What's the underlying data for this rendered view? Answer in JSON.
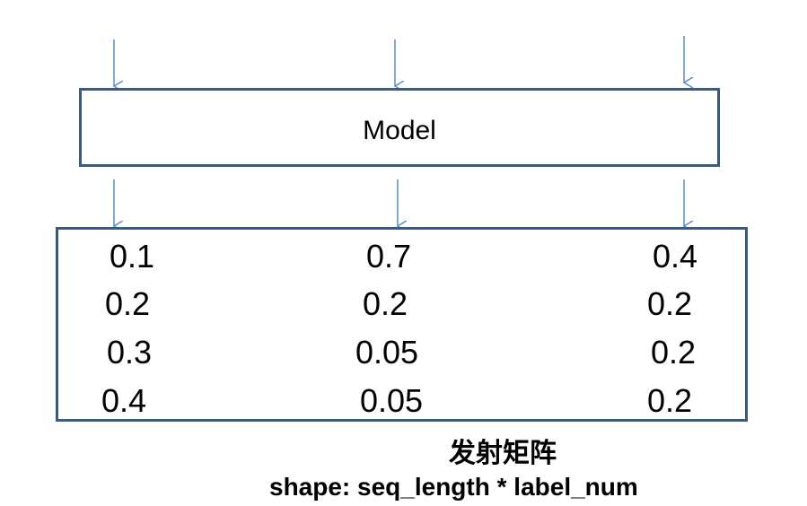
{
  "model": {
    "label": "Model"
  },
  "emission_matrix": {
    "rows": [
      [
        "0.1",
        "0.7",
        "0.4"
      ],
      [
        "0.2",
        "0.2",
        "0.2"
      ],
      [
        "0.3",
        "0.05",
        "0.2"
      ],
      [
        "0.4",
        "0.05",
        "0.2"
      ]
    ]
  },
  "caption": {
    "title": "发射矩阵",
    "shape": "shape: seq_length * label_num"
  },
  "colors": {
    "box_border": "#3b5a80",
    "arrow": "#5b8fc4"
  }
}
